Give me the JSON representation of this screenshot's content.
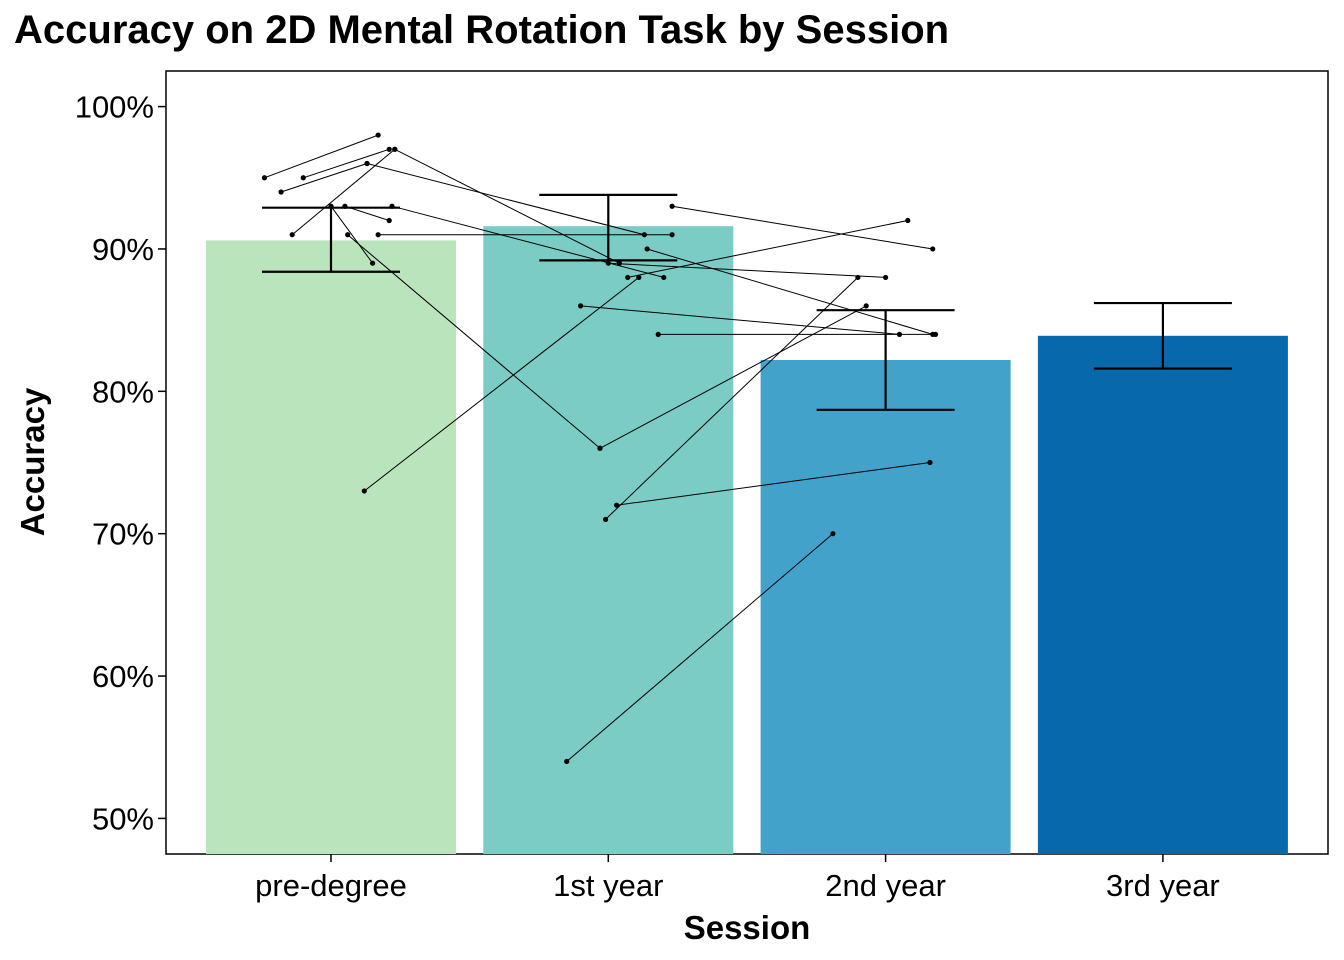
{
  "chart_data": {
    "type": "bar",
    "title": "Accuracy on 2D Mental Rotation Task by Session",
    "xlabel": "Session",
    "ylabel": "Accuracy",
    "categories": [
      "pre-degree",
      "1st year",
      "2nd year",
      "3rd year"
    ],
    "values": [
      0.906,
      0.916,
      0.822,
      0.839
    ],
    "error_bars": [
      {
        "low": 0.884,
        "high": 0.929
      },
      {
        "low": 0.892,
        "high": 0.938
      },
      {
        "low": 0.787,
        "high": 0.857
      },
      {
        "low": 0.816,
        "high": 0.862
      }
    ],
    "bar_colors": [
      "#bae4bc",
      "#7bccc4",
      "#43a2ca",
      "#0868ac"
    ],
    "ylim": [
      0.475,
      1.025
    ],
    "yticks": [
      0.5,
      0.6,
      0.7,
      0.8,
      0.9,
      1.0
    ],
    "ytick_labels": [
      "50%",
      "60%",
      "70%",
      "80%",
      "90%",
      "100%"
    ],
    "grid": false,
    "legend": "none",
    "participant_lines": [
      {
        "x": [
          0.76,
          1.17
        ],
        "y": [
          0.95,
          0.98
        ]
      },
      {
        "x": [
          0.9,
          1.21
        ],
        "y": [
          0.95,
          0.97
        ]
      },
      {
        "x": [
          0.82,
          1.13
        ],
        "y": [
          0.94,
          0.96
        ]
      },
      {
        "x": [
          1.13,
          2.13
        ],
        "y": [
          0.96,
          0.91
        ]
      },
      {
        "x": [
          1.23,
          2.04
        ],
        "y": [
          0.97,
          0.89
        ]
      },
      {
        "x": [
          0.86,
          1.23
        ],
        "y": [
          0.91,
          0.97
        ]
      },
      {
        "x": [
          1.0,
          1.15
        ],
        "y": [
          0.93,
          0.89
        ]
      },
      {
        "x": [
          1.22,
          2.2
        ],
        "y": [
          0.93,
          0.88
        ]
      },
      {
        "x": [
          1.05,
          1.21
        ],
        "y": [
          0.93,
          0.92
        ]
      },
      {
        "x": [
          1.17,
          2.23
        ],
        "y": [
          0.91,
          0.91
        ]
      },
      {
        "x": [
          1.06,
          1.97
        ],
        "y": [
          0.91,
          0.76
        ]
      },
      {
        "x": [
          1.97,
          2.93
        ],
        "y": [
          0.76,
          0.86
        ]
      },
      {
        "x": [
          1.12,
          2.11
        ],
        "y": [
          0.73,
          0.88
        ]
      },
      {
        "x": [
          2.23,
          3.17
        ],
        "y": [
          0.93,
          0.9
        ]
      },
      {
        "x": [
          2.14,
          3.17
        ],
        "y": [
          0.9,
          0.84
        ]
      },
      {
        "x": [
          2.07,
          3.08
        ],
        "y": [
          0.88,
          0.92
        ]
      },
      {
        "x": [
          2.0,
          3.0
        ],
        "y": [
          0.89,
          0.88
        ]
      },
      {
        "x": [
          2.18,
          3.18
        ],
        "y": [
          0.84,
          0.84
        ]
      },
      {
        "x": [
          2.03,
          3.16
        ],
        "y": [
          0.72,
          0.75
        ]
      },
      {
        "x": [
          1.99,
          2.9
        ],
        "y": [
          0.71,
          0.88
        ]
      },
      {
        "x": [
          1.9,
          3.05
        ],
        "y": [
          0.86,
          0.84
        ]
      },
      {
        "x": [
          1.85,
          2.81
        ],
        "y": [
          0.54,
          0.7
        ]
      }
    ]
  }
}
